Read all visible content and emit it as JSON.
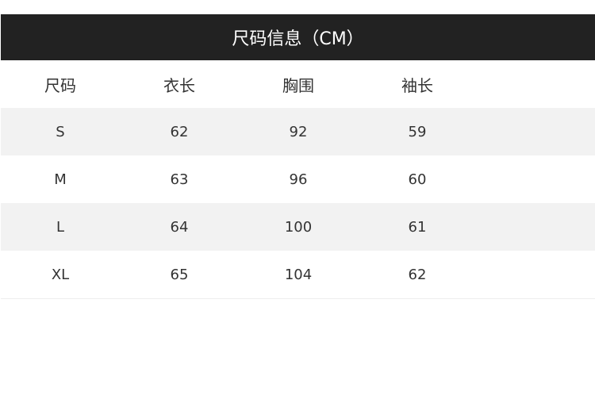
{
  "title": "尺码信息（CM）",
  "headers": [
    "尺码",
    "衣长",
    "胸围",
    "袖长"
  ],
  "rows": [
    [
      "S",
      "62",
      "92",
      "59"
    ],
    [
      "M",
      "63",
      "96",
      "60"
    ],
    [
      "L",
      "64",
      "100",
      "61"
    ],
    [
      "XL",
      "65",
      "104",
      "62"
    ]
  ],
  "colors": {
    "header_bg": "#222222",
    "stripe": "#f2f2f2",
    "text": "#333333"
  }
}
